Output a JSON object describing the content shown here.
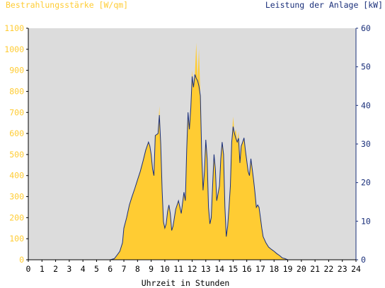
{
  "chart_data": {
    "type": "area",
    "left_axis_title": "Bestrahlungsstärke [W/qm]",
    "right_axis_title": "Leistung der Anlage [kW]",
    "xlabel": "Uhrzeit in Stunden",
    "x_ticks": [
      "0",
      "1",
      "2",
      "3",
      "4",
      "5",
      "6",
      "7",
      "8",
      "9",
      "10",
      "11",
      "12",
      "13",
      "14",
      "15",
      "16",
      "17",
      "18",
      "19",
      "20",
      "21",
      "22",
      "23",
      "24"
    ],
    "xlim": [
      0,
      24
    ],
    "y_left_ticks": [
      "0",
      "100",
      "200",
      "300",
      "400",
      "500",
      "600",
      "700",
      "800",
      "900",
      "1000",
      "1100"
    ],
    "ylim_left": [
      0,
      1100
    ],
    "y_right_ticks": [
      "0",
      "10",
      "20",
      "30",
      "40",
      "50",
      "60"
    ],
    "ylim_right": [
      0,
      60
    ],
    "grid": false,
    "series": [
      {
        "name": "Bestrahlungsstärke [W/qm]",
        "kind": "area",
        "axis": "left",
        "color": "#ffcc33",
        "points": [
          [
            0,
            0
          ],
          [
            6.0,
            0
          ],
          [
            6.3,
            5
          ],
          [
            6.5,
            20
          ],
          [
            6.7,
            40
          ],
          [
            6.9,
            80
          ],
          [
            7.0,
            150
          ],
          [
            7.2,
            200
          ],
          [
            7.4,
            260
          ],
          [
            7.6,
            300
          ],
          [
            7.8,
            340
          ],
          [
            8.0,
            380
          ],
          [
            8.2,
            420
          ],
          [
            8.4,
            470
          ],
          [
            8.6,
            520
          ],
          [
            8.8,
            560
          ],
          [
            8.9,
            540
          ],
          [
            9.0,
            500
          ],
          [
            9.1,
            430
          ],
          [
            9.2,
            400
          ],
          [
            9.3,
            590
          ],
          [
            9.5,
            600
          ],
          [
            9.6,
            730
          ],
          [
            9.7,
            550
          ],
          [
            9.8,
            330
          ],
          [
            9.9,
            180
          ],
          [
            10.0,
            150
          ],
          [
            10.1,
            170
          ],
          [
            10.2,
            230
          ],
          [
            10.3,
            260
          ],
          [
            10.4,
            220
          ],
          [
            10.5,
            140
          ],
          [
            10.6,
            160
          ],
          [
            10.8,
            240
          ],
          [
            11.0,
            280
          ],
          [
            11.2,
            220
          ],
          [
            11.4,
            320
          ],
          [
            11.5,
            280
          ],
          [
            11.6,
            520
          ],
          [
            11.7,
            700
          ],
          [
            11.8,
            620
          ],
          [
            11.9,
            720
          ],
          [
            12.0,
            900
          ],
          [
            12.1,
            820
          ],
          [
            12.2,
            880
          ],
          [
            12.3,
            1030
          ],
          [
            12.4,
            850
          ],
          [
            12.5,
            1000
          ],
          [
            12.6,
            780
          ],
          [
            12.7,
            500
          ],
          [
            12.8,
            330
          ],
          [
            12.9,
            420
          ],
          [
            13.0,
            570
          ],
          [
            13.1,
            480
          ],
          [
            13.2,
            250
          ],
          [
            13.3,
            170
          ],
          [
            13.4,
            200
          ],
          [
            13.5,
            350
          ],
          [
            13.6,
            500
          ],
          [
            13.7,
            430
          ],
          [
            13.8,
            280
          ],
          [
            14.0,
            350
          ],
          [
            14.1,
            480
          ],
          [
            14.2,
            560
          ],
          [
            14.3,
            500
          ],
          [
            14.4,
            250
          ],
          [
            14.5,
            110
          ],
          [
            14.6,
            160
          ],
          [
            14.7,
            250
          ],
          [
            14.8,
            350
          ],
          [
            14.9,
            560
          ],
          [
            15.0,
            680
          ],
          [
            15.1,
            600
          ],
          [
            15.2,
            620
          ],
          [
            15.3,
            560
          ],
          [
            15.4,
            610
          ],
          [
            15.5,
            460
          ],
          [
            15.6,
            540
          ],
          [
            15.7,
            560
          ],
          [
            15.8,
            580
          ],
          [
            15.9,
            520
          ],
          [
            16.0,
            470
          ],
          [
            16.1,
            420
          ],
          [
            16.2,
            400
          ],
          [
            16.3,
            480
          ],
          [
            16.4,
            430
          ],
          [
            16.5,
            380
          ],
          [
            16.6,
            320
          ],
          [
            16.7,
            250
          ],
          [
            16.8,
            260
          ],
          [
            16.9,
            250
          ],
          [
            17.0,
            200
          ],
          [
            17.1,
            150
          ],
          [
            17.2,
            110
          ],
          [
            17.4,
            80
          ],
          [
            17.6,
            60
          ],
          [
            17.8,
            50
          ],
          [
            18.0,
            40
          ],
          [
            18.2,
            30
          ],
          [
            18.4,
            20
          ],
          [
            18.6,
            10
          ],
          [
            18.8,
            5
          ],
          [
            19.0,
            0
          ],
          [
            24,
            0
          ]
        ]
      },
      {
        "name": "Leistung der Anlage [kW]",
        "kind": "line",
        "axis": "right",
        "color": "#1a2f7a",
        "points": [
          [
            0,
            0
          ],
          [
            6.0,
            0
          ],
          [
            6.3,
            0.3
          ],
          [
            6.5,
            1.2
          ],
          [
            6.7,
            2.2
          ],
          [
            6.9,
            4.4
          ],
          [
            7.0,
            8.2
          ],
          [
            7.2,
            10.9
          ],
          [
            7.4,
            14.2
          ],
          [
            7.6,
            16.4
          ],
          [
            7.8,
            18.5
          ],
          [
            8.0,
            20.7
          ],
          [
            8.2,
            22.9
          ],
          [
            8.4,
            25.6
          ],
          [
            8.6,
            28.4
          ],
          [
            8.8,
            30.5
          ],
          [
            8.9,
            29.5
          ],
          [
            9.0,
            27.3
          ],
          [
            9.1,
            23.5
          ],
          [
            9.2,
            21.8
          ],
          [
            9.3,
            32.2
          ],
          [
            9.5,
            32.7
          ],
          [
            9.6,
            37.5
          ],
          [
            9.7,
            30.0
          ],
          [
            9.8,
            18.0
          ],
          [
            9.9,
            9.8
          ],
          [
            10.0,
            8.2
          ],
          [
            10.1,
            9.3
          ],
          [
            10.2,
            12.5
          ],
          [
            10.3,
            14.2
          ],
          [
            10.4,
            12.0
          ],
          [
            10.5,
            7.6
          ],
          [
            10.6,
            8.7
          ],
          [
            10.8,
            13.1
          ],
          [
            11.0,
            15.3
          ],
          [
            11.2,
            12.0
          ],
          [
            11.4,
            17.5
          ],
          [
            11.5,
            15.3
          ],
          [
            11.6,
            28.4
          ],
          [
            11.7,
            38.2
          ],
          [
            11.8,
            33.8
          ],
          [
            11.9,
            39.3
          ],
          [
            12.0,
            47.5
          ],
          [
            12.1,
            44.7
          ],
          [
            12.2,
            48.0
          ],
          [
            12.3,
            47.0
          ],
          [
            12.4,
            46.4
          ],
          [
            12.5,
            45.0
          ],
          [
            12.6,
            42.5
          ],
          [
            12.7,
            27.3
          ],
          [
            12.8,
            18.0
          ],
          [
            12.9,
            22.9
          ],
          [
            13.0,
            31.1
          ],
          [
            13.1,
            26.2
          ],
          [
            13.2,
            13.6
          ],
          [
            13.3,
            9.3
          ],
          [
            13.4,
            10.9
          ],
          [
            13.5,
            19.1
          ],
          [
            13.6,
            27.3
          ],
          [
            13.7,
            23.5
          ],
          [
            13.8,
            15.3
          ],
          [
            14.0,
            19.1
          ],
          [
            14.1,
            26.2
          ],
          [
            14.2,
            30.5
          ],
          [
            14.3,
            27.3
          ],
          [
            14.4,
            13.6
          ],
          [
            14.5,
            6.0
          ],
          [
            14.6,
            8.7
          ],
          [
            14.7,
            13.6
          ],
          [
            14.8,
            19.1
          ],
          [
            14.9,
            30.5
          ],
          [
            15.0,
            34.5
          ],
          [
            15.1,
            32.7
          ],
          [
            15.2,
            31.5
          ],
          [
            15.3,
            30.5
          ],
          [
            15.4,
            31.5
          ],
          [
            15.5,
            25.1
          ],
          [
            15.6,
            29.5
          ],
          [
            15.7,
            30.5
          ],
          [
            15.8,
            31.6
          ],
          [
            15.9,
            28.4
          ],
          [
            16.0,
            25.6
          ],
          [
            16.1,
            22.9
          ],
          [
            16.2,
            21.8
          ],
          [
            16.3,
            26.2
          ],
          [
            16.4,
            23.5
          ],
          [
            16.5,
            20.7
          ],
          [
            16.6,
            17.5
          ],
          [
            16.7,
            13.6
          ],
          [
            16.8,
            14.2
          ],
          [
            16.9,
            13.6
          ],
          [
            17.0,
            10.9
          ],
          [
            17.1,
            8.2
          ],
          [
            17.2,
            6.0
          ],
          [
            17.4,
            4.4
          ],
          [
            17.6,
            3.3
          ],
          [
            17.8,
            2.7
          ],
          [
            18.0,
            2.2
          ],
          [
            18.2,
            1.6
          ],
          [
            18.4,
            1.1
          ],
          [
            18.6,
            0.5
          ],
          [
            18.8,
            0.3
          ],
          [
            19.0,
            0
          ],
          [
            24,
            0
          ]
        ]
      }
    ],
    "colors": {
      "plot_background": "#dcdcdc",
      "left_axis_text": "#ffcc33",
      "right_axis_text": "#1a2f7a",
      "x_axis_text": "#000000"
    }
  }
}
